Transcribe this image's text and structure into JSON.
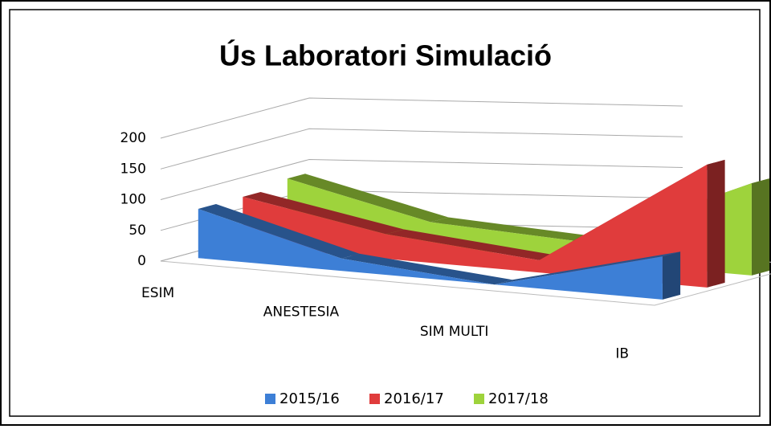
{
  "chart_data": {
    "type": "line3d",
    "title": "Ús Laboratori Simulació",
    "categories": [
      "ESIM",
      "ANESTESIA",
      "SIM MULTI",
      "IB"
    ],
    "series": [
      {
        "name": "2015/16",
        "color": "#3d7fd6",
        "values": [
          80,
          20,
          0,
          70
        ]
      },
      {
        "name": "2016/17",
        "color": "#e03c3c",
        "values": [
          80,
          40,
          20,
          200
        ]
      },
      {
        "name": "2017/18",
        "color": "#9ed33c",
        "values": [
          90,
          40,
          30,
          150
        ]
      }
    ],
    "ylim": [
      0,
      200
    ],
    "yticks": [
      0,
      50,
      100,
      150,
      200
    ],
    "grid": true,
    "legend": "bottom"
  }
}
